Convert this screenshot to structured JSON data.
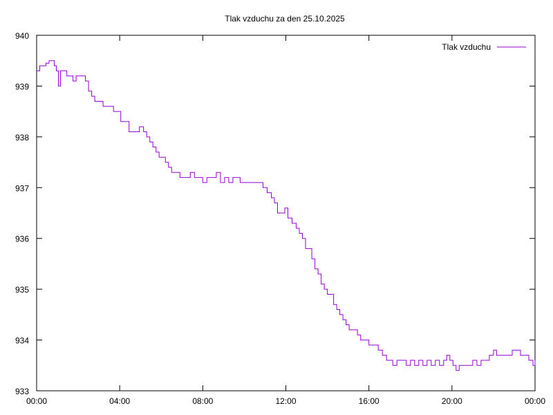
{
  "chart_data": {
    "type": "line",
    "title": "Tlak vzduchu za den 25.10.2025",
    "xlabel": "",
    "ylabel": "",
    "ylim": [
      933,
      940
    ],
    "xlim": [
      0,
      24
    ],
    "y_ticks": [
      "933",
      "934",
      "935",
      "936",
      "937",
      "938",
      "939",
      "940"
    ],
    "x_ticks": [
      "00:00",
      "04:00",
      "08:00",
      "12:00",
      "16:00",
      "20:00",
      "00:00"
    ],
    "grid": false,
    "legend_position": "top-right",
    "series": [
      {
        "name": "Tlak vzduchu",
        "color": "#9400d3",
        "points": [
          [
            0.0,
            939.3
          ],
          [
            0.15,
            939.4
          ],
          [
            0.3,
            939.4
          ],
          [
            0.45,
            939.45
          ],
          [
            0.6,
            939.5
          ],
          [
            0.75,
            939.5
          ],
          [
            0.85,
            939.4
          ],
          [
            0.95,
            939.3
          ],
          [
            1.05,
            939.0
          ],
          [
            1.15,
            939.3
          ],
          [
            1.3,
            939.3
          ],
          [
            1.45,
            939.2
          ],
          [
            1.6,
            939.2
          ],
          [
            1.75,
            939.1
          ],
          [
            1.9,
            939.2
          ],
          [
            2.05,
            939.2
          ],
          [
            2.2,
            939.2
          ],
          [
            2.35,
            939.1
          ],
          [
            2.5,
            938.9
          ],
          [
            2.65,
            938.8
          ],
          [
            2.8,
            938.7
          ],
          [
            3.0,
            938.7
          ],
          [
            3.2,
            938.6
          ],
          [
            3.45,
            938.6
          ],
          [
            3.7,
            938.5
          ],
          [
            3.9,
            938.5
          ],
          [
            4.05,
            938.3
          ],
          [
            4.25,
            938.3
          ],
          [
            4.45,
            938.1
          ],
          [
            4.7,
            938.1
          ],
          [
            4.95,
            938.2
          ],
          [
            5.15,
            938.1
          ],
          [
            5.3,
            938.0
          ],
          [
            5.45,
            937.9
          ],
          [
            5.6,
            937.8
          ],
          [
            5.75,
            937.7
          ],
          [
            5.9,
            937.6
          ],
          [
            6.05,
            937.6
          ],
          [
            6.2,
            937.5
          ],
          [
            6.35,
            937.4
          ],
          [
            6.5,
            937.3
          ],
          [
            6.7,
            937.3
          ],
          [
            6.9,
            937.2
          ],
          [
            7.2,
            937.2
          ],
          [
            7.4,
            937.3
          ],
          [
            7.6,
            937.2
          ],
          [
            7.8,
            937.2
          ],
          [
            8.0,
            937.1
          ],
          [
            8.2,
            937.2
          ],
          [
            8.45,
            937.2
          ],
          [
            8.65,
            937.3
          ],
          [
            8.85,
            937.1
          ],
          [
            9.05,
            937.2
          ],
          [
            9.25,
            937.1
          ],
          [
            9.45,
            937.2
          ],
          [
            9.6,
            937.2
          ],
          [
            9.8,
            937.1
          ],
          [
            10.0,
            937.1
          ],
          [
            10.2,
            937.1
          ],
          [
            10.45,
            937.1
          ],
          [
            10.7,
            937.1
          ],
          [
            10.9,
            937.0
          ],
          [
            11.1,
            936.9
          ],
          [
            11.3,
            936.8
          ],
          [
            11.45,
            936.7
          ],
          [
            11.6,
            936.5
          ],
          [
            11.8,
            936.5
          ],
          [
            11.95,
            936.6
          ],
          [
            12.1,
            936.4
          ],
          [
            12.3,
            936.3
          ],
          [
            12.5,
            936.2
          ],
          [
            12.65,
            936.1
          ],
          [
            12.8,
            936.0
          ],
          [
            12.95,
            935.8
          ],
          [
            13.1,
            935.8
          ],
          [
            13.25,
            935.6
          ],
          [
            13.4,
            935.4
          ],
          [
            13.55,
            935.3
          ],
          [
            13.7,
            935.1
          ],
          [
            13.85,
            935.0
          ],
          [
            14.0,
            934.9
          ],
          [
            14.15,
            934.9
          ],
          [
            14.3,
            934.7
          ],
          [
            14.45,
            934.6
          ],
          [
            14.6,
            934.5
          ],
          [
            14.75,
            934.4
          ],
          [
            14.9,
            934.3
          ],
          [
            15.05,
            934.2
          ],
          [
            15.25,
            934.2
          ],
          [
            15.45,
            934.1
          ],
          [
            15.6,
            934.0
          ],
          [
            15.8,
            934.0
          ],
          [
            16.0,
            933.9
          ],
          [
            16.2,
            933.9
          ],
          [
            16.45,
            933.8
          ],
          [
            16.65,
            933.7
          ],
          [
            16.85,
            933.6
          ],
          [
            17.0,
            933.6
          ],
          [
            17.15,
            933.5
          ],
          [
            17.35,
            933.6
          ],
          [
            17.6,
            933.6
          ],
          [
            17.8,
            933.5
          ],
          [
            18.0,
            933.6
          ],
          [
            18.2,
            933.5
          ],
          [
            18.4,
            933.6
          ],
          [
            18.6,
            933.5
          ],
          [
            18.8,
            933.6
          ],
          [
            19.0,
            933.5
          ],
          [
            19.2,
            933.6
          ],
          [
            19.4,
            933.5
          ],
          [
            19.6,
            933.6
          ],
          [
            19.75,
            933.7
          ],
          [
            19.9,
            933.6
          ],
          [
            20.05,
            933.5
          ],
          [
            20.2,
            933.4
          ],
          [
            20.35,
            933.5
          ],
          [
            20.6,
            933.5
          ],
          [
            20.85,
            933.5
          ],
          [
            21.0,
            933.6
          ],
          [
            21.2,
            933.5
          ],
          [
            21.4,
            933.6
          ],
          [
            21.6,
            933.6
          ],
          [
            21.8,
            933.7
          ],
          [
            22.0,
            933.8
          ],
          [
            22.15,
            933.7
          ],
          [
            22.4,
            933.7
          ],
          [
            22.7,
            933.7
          ],
          [
            22.9,
            933.8
          ],
          [
            23.1,
            933.8
          ],
          [
            23.3,
            933.7
          ],
          [
            23.5,
            933.7
          ],
          [
            23.7,
            933.6
          ],
          [
            23.9,
            933.5
          ],
          [
            24.0,
            933.6
          ]
        ]
      }
    ]
  }
}
